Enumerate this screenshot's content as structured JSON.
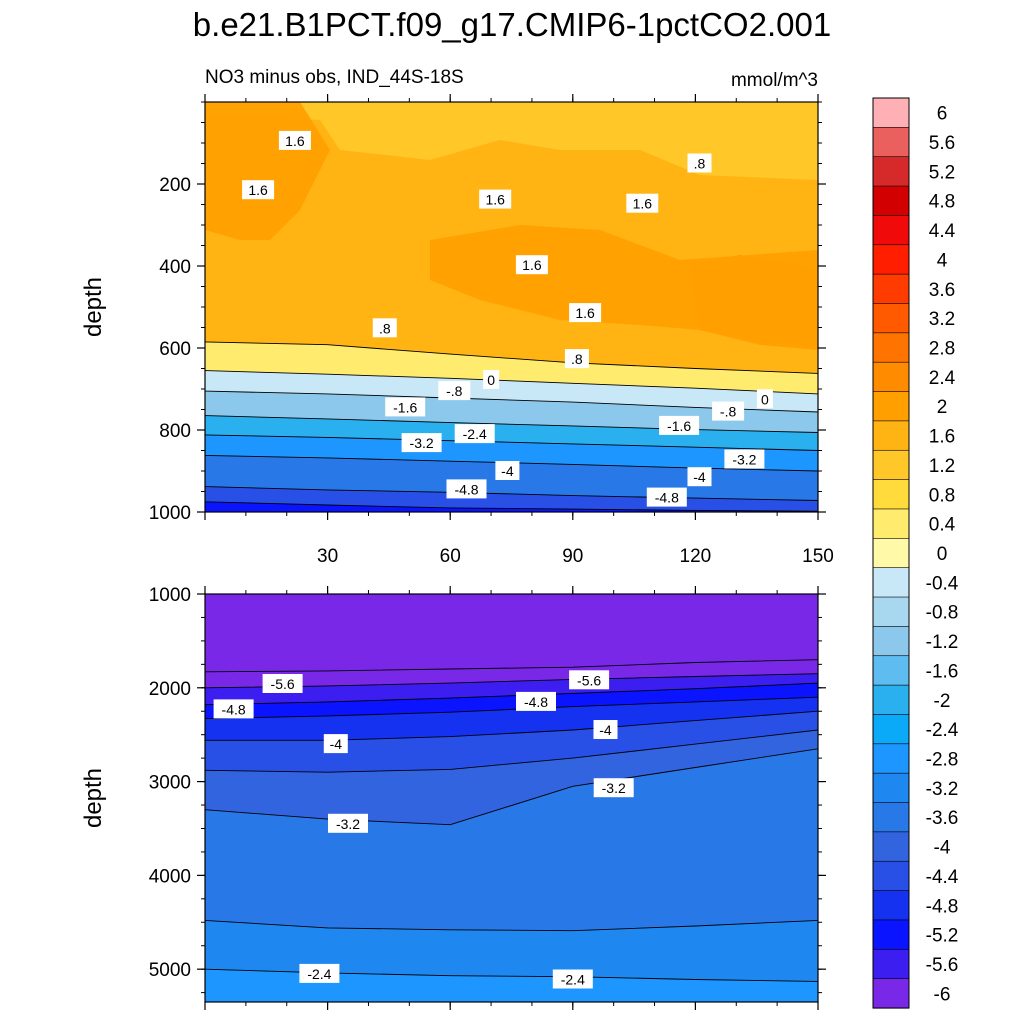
{
  "chart_data": {
    "type": "heatmap",
    "title": "b.e21.B1PCT.f09_g17.CMIP6-1pctCO2.001",
    "left_subtitle": "NO3 minus obs, IND_44S-18S",
    "right_subtitle": "mmol/m^3",
    "ylabel": "depth",
    "upper_panel": {
      "ylim": [
        0,
        1000
      ],
      "yticks": [
        "200",
        "400",
        "600",
        "800",
        "1000"
      ],
      "xlim": [
        0,
        150
      ],
      "xticks": [
        "30",
        "60",
        "90",
        "120",
        "150"
      ],
      "isolines": [
        {
          "value": -4.8,
          "depths": [
            975,
            983,
            990,
            993,
            996,
            998
          ]
        },
        {
          "value": -4,
          "depths": [
            938,
            946,
            952,
            960,
            966,
            972
          ]
        },
        {
          "value": -3.2,
          "depths": [
            862,
            868,
            876,
            884,
            893,
            900
          ]
        },
        {
          "value": -2.4,
          "depths": [
            812,
            818,
            826,
            834,
            842,
            850
          ]
        },
        {
          "value": -1.6,
          "depths": [
            765,
            773,
            782,
            790,
            799,
            806
          ]
        },
        {
          "value": -0.8,
          "depths": [
            705,
            712,
            722,
            732,
            745,
            756
          ]
        },
        {
          "value": 0,
          "depths": [
            655,
            664,
            674,
            686,
            698,
            712
          ]
        },
        {
          "value": 0.8,
          "depths": [
            585,
            592,
            615,
            636,
            650,
            662
          ]
        }
      ],
      "contour_labels": [
        {
          "text": "1.6",
          "x": 22,
          "y": 95
        },
        {
          "text": "1.6",
          "x": 13,
          "y": 215
        },
        {
          "text": "1.6",
          "x": 71,
          "y": 238
        },
        {
          "text": "1.6",
          "x": 107,
          "y": 248
        },
        {
          "text": "1.6",
          "x": 80,
          "y": 398
        },
        {
          "text": "1.6",
          "x": 93,
          "y": 515
        },
        {
          "text": ".8",
          "x": 121,
          "y": 150
        },
        {
          "text": ".8",
          "x": 44,
          "y": 552
        },
        {
          "text": ".8",
          "x": 91,
          "y": 627
        },
        {
          "text": "0",
          "x": 70,
          "y": 678
        },
        {
          "text": "0",
          "x": 137,
          "y": 725
        },
        {
          "text": "-.8",
          "x": 61,
          "y": 705
        },
        {
          "text": "-.8",
          "x": 128,
          "y": 755
        },
        {
          "text": "-1.6",
          "x": 49,
          "y": 745
        },
        {
          "text": "-1.6",
          "x": 116,
          "y": 790
        },
        {
          "text": "-2.4",
          "x": 66,
          "y": 810
        },
        {
          "text": "-3.2",
          "x": 53,
          "y": 832
        },
        {
          "text": "-3.2",
          "x": 132,
          "y": 872
        },
        {
          "text": "-4",
          "x": 74,
          "y": 900
        },
        {
          "text": "-4",
          "x": 121,
          "y": 915
        },
        {
          "text": "-4.8",
          "x": 64,
          "y": 945
        },
        {
          "text": "-4.8",
          "x": 113,
          "y": 965
        }
      ]
    },
    "lower_panel": {
      "ylim": [
        1000,
        5350
      ],
      "yticks": [
        "1000",
        "2000",
        "3000",
        "4000",
        "5000"
      ],
      "xlim": [
        0,
        150
      ],
      "isolines": [
        {
          "value": -5.6,
          "depths": [
            1830,
            1820,
            1800,
            1780,
            1730,
            1700
          ]
        },
        {
          "value": -5.2,
          "depths": [
            2000,
            1980,
            1950,
            1910,
            1880,
            1850
          ]
        },
        {
          "value": -4.8,
          "depths": [
            2180,
            2150,
            2110,
            2060,
            2010,
            1950
          ]
        },
        {
          "value": -4.4,
          "depths": [
            2330,
            2300,
            2260,
            2200,
            2150,
            2100
          ]
        },
        {
          "value": -4,
          "depths": [
            2560,
            2560,
            2520,
            2450,
            2350,
            2250
          ]
        },
        {
          "value": -3.6,
          "depths": [
            2880,
            2900,
            2870,
            2750,
            2600,
            2450
          ]
        },
        {
          "value": -3.2,
          "depths": [
            3300,
            3400,
            3460,
            3050,
            2850,
            2650
          ]
        },
        {
          "value": -2.8,
          "depths": [
            4480,
            4560,
            4580,
            4590,
            4540,
            4480
          ]
        },
        {
          "value": -2.4,
          "depths": [
            5000,
            5040,
            5070,
            5080,
            5110,
            5130
          ]
        }
      ],
      "contour_labels": [
        {
          "text": "-5.6",
          "x": 19,
          "y": 1960
        },
        {
          "text": "-5.6",
          "x": 94,
          "y": 1920
        },
        {
          "text": "-4.8",
          "x": 7,
          "y": 2230
        },
        {
          "text": "-4.8",
          "x": 81,
          "y": 2150
        },
        {
          "text": "-4",
          "x": 32,
          "y": 2600
        },
        {
          "text": "-4",
          "x": 98,
          "y": 2450
        },
        {
          "text": "-3.2",
          "x": 35,
          "y": 3450
        },
        {
          "text": "-3.2",
          "x": 100,
          "y": 3070
        },
        {
          "text": "-2.4",
          "x": 28,
          "y": 5050
        },
        {
          "text": "-2.4",
          "x": 90,
          "y": 5110
        }
      ]
    },
    "colorbar": {
      "labels": [
        "6",
        "5.6",
        "5.2",
        "4.8",
        "4.4",
        "4",
        "3.6",
        "3.2",
        "2.8",
        "2.4",
        "2",
        "1.6",
        "1.2",
        "0.8",
        "0.4",
        "0",
        "-0.4",
        "-0.8",
        "-1.2",
        "-1.6",
        "-2",
        "-2.4",
        "-2.8",
        "-3.2",
        "-3.6",
        "-4",
        "-4.4",
        "-4.8",
        "-5.2",
        "-5.6",
        "-6"
      ],
      "colors": [
        "#ffb0b4",
        "#e9605f",
        "#d62a2a",
        "#d20000",
        "#f00a0a",
        "#ff1e00",
        "#ff3c00",
        "#ff5a00",
        "#ff7300",
        "#ff8c00",
        "#ffa000",
        "#ffb414",
        "#ffc828",
        "#ffdc3c",
        "#ffeb6e",
        "#fff9a8",
        "#c8e8f8",
        "#a8d8f0",
        "#8cc8ec",
        "#5ebcf0",
        "#2ab0ee",
        "#0aaaf8",
        "#1e96ff",
        "#1e88f0",
        "#2878e8",
        "#3264e0",
        "#2850e6",
        "#1432f0",
        "#0a14ff",
        "#3c1ef0",
        "#7a28e8"
      ]
    }
  }
}
